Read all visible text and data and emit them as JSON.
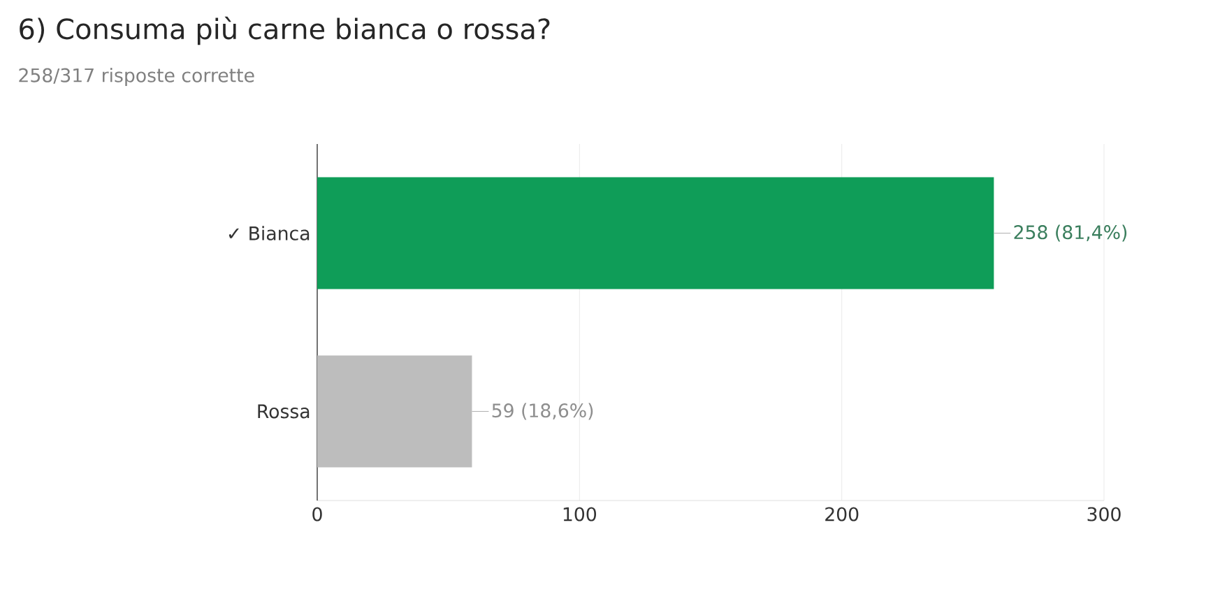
{
  "chart_data": {
    "type": "bar",
    "orientation": "horizontal",
    "title": "6) Consuma più carne bianca o rossa?",
    "subtitle": "258/317 risposte corrette",
    "categories": [
      "✓ Bianca",
      "Rossa"
    ],
    "values": [
      258,
      59
    ],
    "colors": [
      "#0f9d58",
      "#bdbdbd"
    ],
    "value_labels": [
      "258 (81,4%)",
      "59 (18,6%)"
    ],
    "xlim": [
      0,
      300
    ],
    "xticks": [
      0,
      100,
      200,
      300
    ],
    "grid": "x"
  }
}
